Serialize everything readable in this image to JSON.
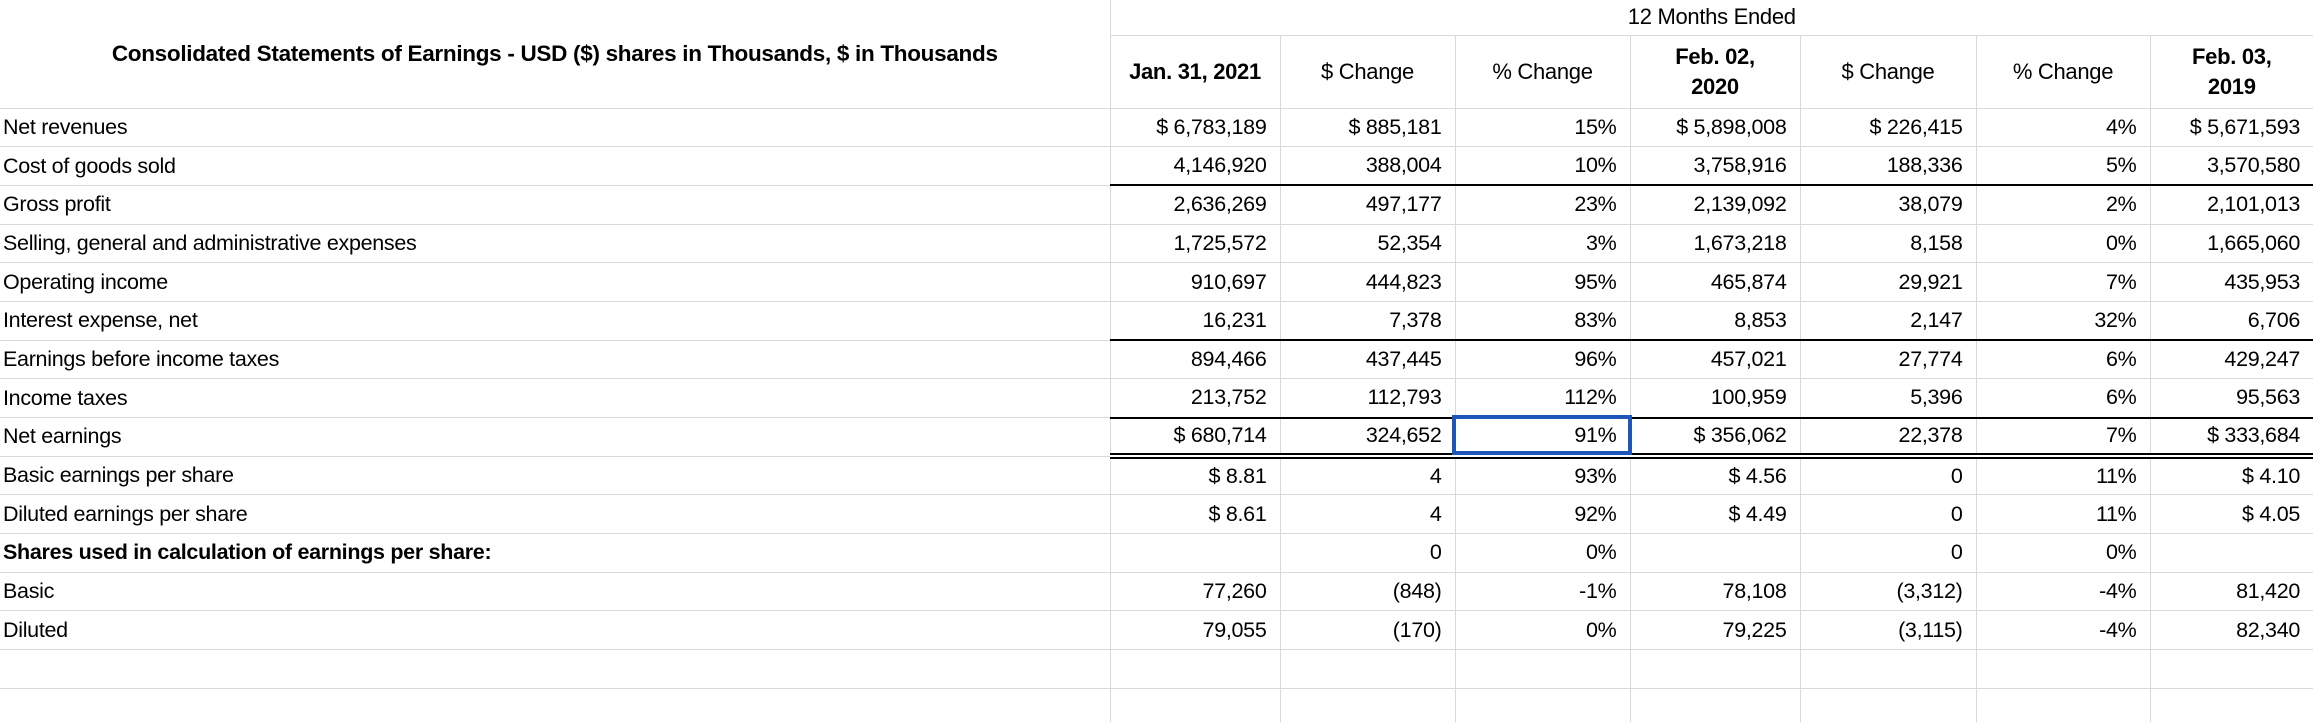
{
  "table": {
    "title": "Consolidated Statements of Earnings - USD ($) shares in Thousands, $ in Thousands",
    "period_header": "12 Months Ended",
    "columns": [
      {
        "label": "Jan. 31, 2021",
        "bold": true
      },
      {
        "label": "$ Change",
        "bold": false
      },
      {
        "label": "% Change",
        "bold": false
      },
      {
        "label": "Feb. 02,\n2020",
        "bold": true
      },
      {
        "label": "$ Change",
        "bold": false
      },
      {
        "label": "% Change",
        "bold": false
      },
      {
        "label": "Feb. 03,\n2019",
        "bold": true
      }
    ],
    "rows": [
      {
        "label": "Net revenues",
        "bold": false,
        "underline": "none",
        "values": [
          "$ 6,783,189",
          "$ 885,181",
          "15%",
          "$ 5,898,008",
          "$ 226,415",
          "4%",
          "$ 5,671,593"
        ]
      },
      {
        "label": "Cost of goods sold",
        "bold": false,
        "underline": "single",
        "values": [
          "4,146,920",
          "388,004",
          "10%",
          "3,758,916",
          "188,336",
          "5%",
          "3,570,580"
        ]
      },
      {
        "label": "Gross profit",
        "bold": false,
        "underline": "none",
        "values": [
          "2,636,269",
          "497,177",
          "23%",
          "2,139,092",
          "38,079",
          "2%",
          "2,101,013"
        ]
      },
      {
        "label": "Selling, general and administrative expenses",
        "bold": false,
        "underline": "none",
        "values": [
          "1,725,572",
          "52,354",
          "3%",
          "1,673,218",
          "8,158",
          "0%",
          "1,665,060"
        ]
      },
      {
        "label": "Operating income",
        "bold": false,
        "underline": "none",
        "values": [
          "910,697",
          "444,823",
          "95%",
          "465,874",
          "29,921",
          "7%",
          "435,953"
        ]
      },
      {
        "label": "Interest expense, net",
        "bold": false,
        "underline": "single",
        "values": [
          "16,231",
          "7,378",
          "83%",
          "8,853",
          "2,147",
          "32%",
          "6,706"
        ]
      },
      {
        "label": "Earnings before income taxes",
        "bold": false,
        "underline": "none",
        "values": [
          "894,466",
          "437,445",
          "96%",
          "457,021",
          "27,774",
          "6%",
          "429,247"
        ]
      },
      {
        "label": "Income taxes",
        "bold": false,
        "underline": "single",
        "values": [
          "213,752",
          "112,793",
          "112%",
          "100,959",
          "5,396",
          "6%",
          "95,563"
        ]
      },
      {
        "label": "Net earnings",
        "bold": false,
        "underline": "double",
        "values": [
          "$ 680,714",
          "324,652",
          "91%",
          "$ 356,062",
          "22,378",
          "7%",
          "$ 333,684"
        ]
      },
      {
        "label": "Basic earnings per share",
        "bold": false,
        "underline": "none",
        "values": [
          "$ 8.81",
          "4",
          "93%",
          "$ 4.56",
          "0",
          "11%",
          "$ 4.10"
        ]
      },
      {
        "label": "Diluted earnings per share",
        "bold": false,
        "underline": "none",
        "values": [
          "$ 8.61",
          "4",
          "92%",
          "$ 4.49",
          "0",
          "11%",
          "$ 4.05"
        ]
      },
      {
        "label": "Shares used in calculation of earnings per share:",
        "bold": true,
        "underline": "none",
        "values": [
          "",
          "0",
          "0%",
          "",
          "0",
          "0%",
          ""
        ]
      },
      {
        "label": "Basic",
        "bold": false,
        "underline": "none",
        "values": [
          "77,260",
          "(848)",
          "-1%",
          "78,108",
          "(3,312)",
          "-4%",
          "81,420"
        ]
      },
      {
        "label": "Diluted",
        "bold": false,
        "underline": "none",
        "values": [
          "79,055",
          "(170)",
          "0%",
          "79,225",
          "(3,115)",
          "-4%",
          "82,340"
        ]
      },
      {
        "label": "",
        "bold": false,
        "underline": "none",
        "values": [
          "",
          "",
          "",
          "",
          "",
          "",
          ""
        ]
      },
      {
        "label": "",
        "bold": false,
        "underline": "none",
        "values": [
          "",
          "",
          "",
          "",
          "",
          "",
          ""
        ]
      }
    ],
    "selection": {
      "row": 8,
      "col": 2,
      "value": "91%",
      "row_label": "Net earnings",
      "column_label": "% Change",
      "border_color": "#1E55B8"
    }
  }
}
